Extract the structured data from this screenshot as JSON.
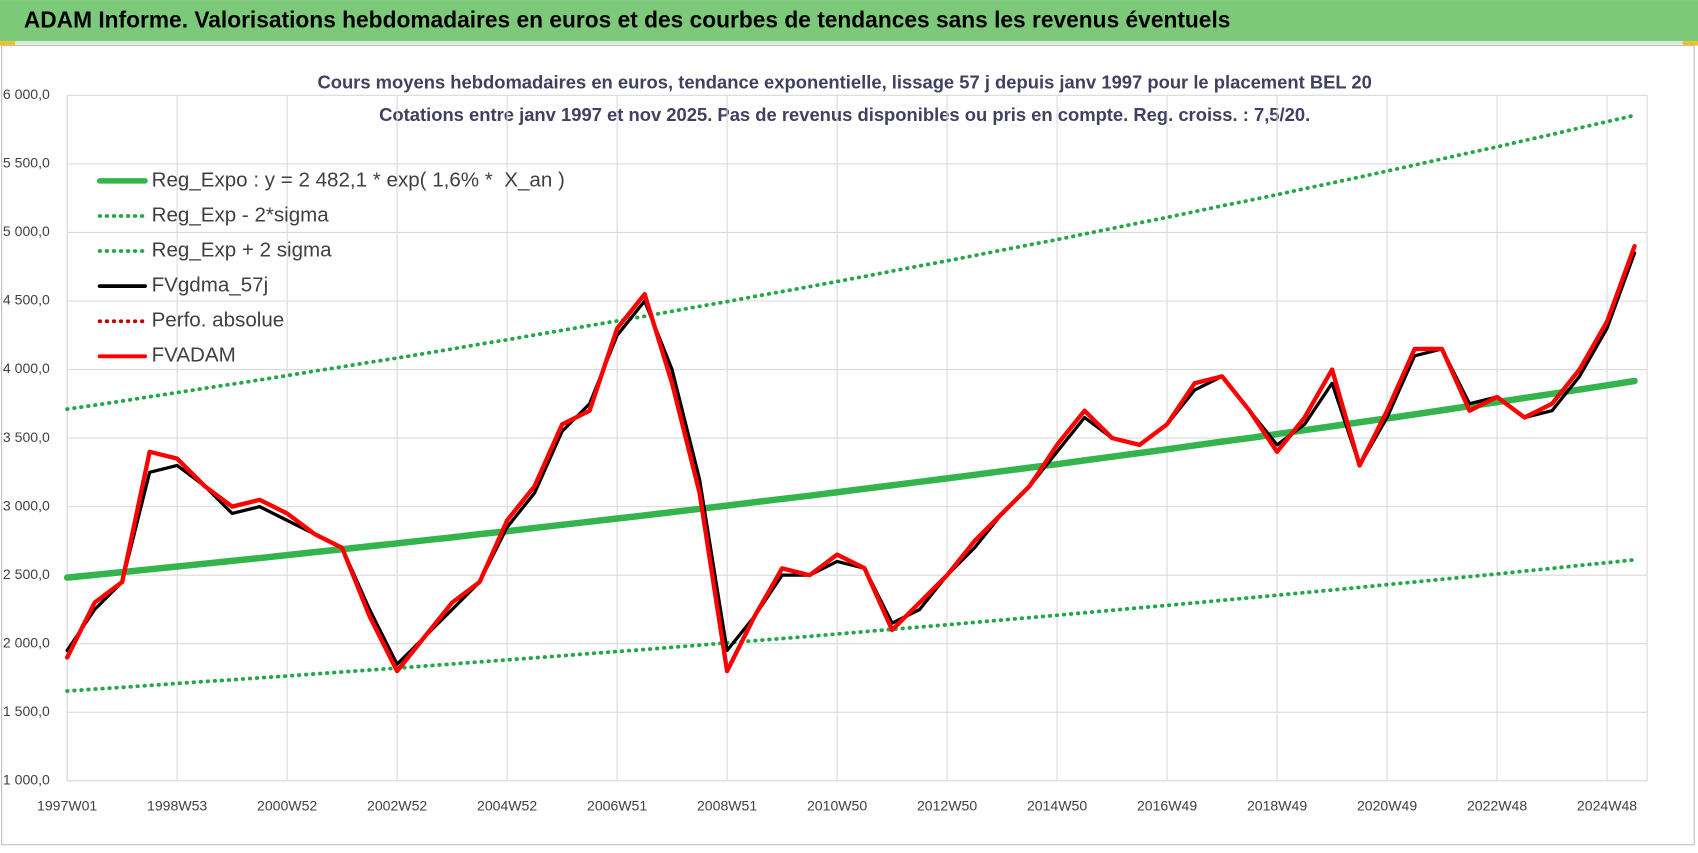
{
  "header": "ADAM Informe. Valorisations hebdomadaires en euros et des courbes de tendances sans les revenus éventuels",
  "chart_data": {
    "type": "line",
    "title": "Cours moyens hebdomadaires en euros, tendance exponentielle, lissage 57 j depuis janv 1997 pour le placement BEL 20",
    "subtitle": "Cotations entre janv 1997 et nov 2025. Pas de revenus disponibles ou pris en compte. Reg. croiss. : 7,5/20.",
    "categories": [
      "1997W01",
      null,
      null,
      null,
      "1998W53",
      null,
      null,
      null,
      "2000W52",
      null,
      null,
      null,
      "2002W52",
      null,
      null,
      null,
      "2004W52",
      null,
      null,
      null,
      "2006W51",
      null,
      null,
      null,
      "2008W51",
      null,
      null,
      null,
      "2010W50",
      null,
      null,
      null,
      "2012W50",
      null,
      null,
      null,
      "2014W50",
      null,
      null,
      null,
      "2016W49",
      null,
      null,
      null,
      "2018W49",
      null,
      null,
      null,
      "2020W49",
      null,
      null,
      null,
      "2022W48",
      null,
      null,
      null,
      "2024W48",
      null
    ],
    "ylim": [
      1000,
      6000
    ],
    "yticks": [
      {
        "value": 1000,
        "label": "1 000,0"
      },
      {
        "value": 1500,
        "label": "1 500,0"
      },
      {
        "value": 2000,
        "label": "2 000,0"
      },
      {
        "value": 2500,
        "label": "2 500,0"
      },
      {
        "value": 3000,
        "label": "3 000,0"
      },
      {
        "value": 3500,
        "label": "3 500,0"
      },
      {
        "value": 4000,
        "label": "4 000,0"
      },
      {
        "value": 4500,
        "label": "4 500,0"
      },
      {
        "value": 5000,
        "label": "5 000,0"
      },
      {
        "value": 5500,
        "label": "5 500,0"
      },
      {
        "value": 6000,
        "label": "6 000,0"
      }
    ],
    "grid": true,
    "legend": "upper left",
    "series": [
      {
        "name": "Reg_Expo : y = 2 482,1 * exp( 1,6% *  X_an )",
        "color": "#34b44c",
        "style": "solid",
        "values": [
          2482,
          2502,
          2522,
          2543,
          2563,
          2584,
          2604,
          2625,
          2646,
          2668,
          2689,
          2711,
          2732,
          2754,
          2776,
          2799,
          2821,
          2844,
          2867,
          2890,
          2913,
          2936,
          2960,
          2984,
          3007,
          3032,
          3056,
          3080,
          3105,
          3130,
          3156,
          3181,
          3206,
          3232,
          3258,
          3284,
          3310,
          3337,
          3364,
          3391,
          3418,
          3446,
          3474,
          3501,
          3529,
          3558,
          3586,
          3615,
          3644,
          3673,
          3703,
          3733,
          3762,
          3793,
          3823,
          3854,
          3885,
          3916
        ]
      },
      {
        "name": "Reg_Exp - 2*sigma",
        "color": "#22a84a",
        "style": "dotted",
        "values": [
          1655,
          1669,
          1682,
          1696,
          1710,
          1724,
          1737,
          1751,
          1765,
          1780,
          1794,
          1808,
          1822,
          1837,
          1852,
          1867,
          1882,
          1897,
          1912,
          1928,
          1943,
          1958,
          1974,
          1990,
          2006,
          2022,
          2038,
          2054,
          2071,
          2088,
          2105,
          2122,
          2138,
          2156,
          2173,
          2190,
          2208,
          2226,
          2244,
          2262,
          2280,
          2298,
          2317,
          2335,
          2354,
          2373,
          2392,
          2411,
          2431,
          2450,
          2470,
          2490,
          2509,
          2530,
          2550,
          2571,
          2591,
          2612
        ]
      },
      {
        "name": "Reg_Exp + 2 sigma",
        "color": "#22a84a",
        "style": "dotted",
        "values": [
          3711,
          3740,
          3770,
          3802,
          3832,
          3863,
          3893,
          3924,
          3956,
          3989,
          4020,
          4053,
          4084,
          4117,
          4150,
          4185,
          4217,
          4252,
          4286,
          4321,
          4355,
          4389,
          4425,
          4461,
          4495,
          4533,
          4569,
          4605,
          4642,
          4679,
          4718,
          4756,
          4793,
          4832,
          4871,
          4910,
          4948,
          4989,
          5029,
          5070,
          5110,
          5152,
          5194,
          5234,
          5276,
          5319,
          5361,
          5404,
          5448,
          5491,
          5536,
          5581,
          5624,
          5671,
          5715,
          5762,
          5808,
          5854
        ]
      },
      {
        "name": "FVgdma_57j",
        "color": "#000000",
        "style": "solid",
        "values": [
          1950,
          2250,
          2450,
          3250,
          3300,
          3150,
          2950,
          3000,
          2900,
          2800,
          2700,
          2250,
          1850,
          2050,
          2250,
          2450,
          2850,
          3100,
          3550,
          3750,
          4250,
          4500,
          4000,
          3200,
          1950,
          2200,
          2500,
          2500,
          2600,
          2550,
          2150,
          2250,
          2500,
          2700,
          2950,
          3150,
          3400,
          3650,
          3500,
          3450,
          3600,
          3850,
          3950,
          3700,
          3450,
          3600,
          3900,
          3300,
          3650,
          4100,
          4150,
          3750,
          3800,
          3650,
          3700,
          3950,
          4300,
          4850
        ]
      },
      {
        "name": "Perfo. absolue",
        "color": "#c00000",
        "style": "dotted",
        "values": [
          1900,
          2300,
          2450,
          3400,
          3350,
          3150,
          3000,
          3050,
          2950,
          2800,
          2700,
          2200,
          1800,
          2050,
          2300,
          2450,
          2900,
          3150,
          3600,
          3700,
          4300,
          4550,
          3900,
          3100,
          1800,
          2200,
          2550,
          2500,
          2650,
          2550,
          2100,
          2300,
          2500,
          2750,
          2950,
          3150,
          3450,
          3700,
          3500,
          3450,
          3600,
          3900,
          3950,
          3700,
          3400,
          3650,
          4000,
          3300,
          3700,
          4150,
          4150,
          3700,
          3800,
          3650,
          3750,
          4000,
          4350,
          4900
        ]
      },
      {
        "name": "FVADAM",
        "color": "#ff0000",
        "style": "solid",
        "values": [
          1900,
          2300,
          2450,
          3400,
          3350,
          3150,
          3000,
          3050,
          2950,
          2800,
          2700,
          2200,
          1800,
          2050,
          2300,
          2450,
          2900,
          3150,
          3600,
          3700,
          4300,
          4550,
          3900,
          3100,
          1800,
          2200,
          2550,
          2500,
          2650,
          2550,
          2100,
          2300,
          2500,
          2750,
          2950,
          3150,
          3450,
          3700,
          3500,
          3450,
          3600,
          3900,
          3950,
          3700,
          3400,
          3650,
          4000,
          3300,
          3700,
          4150,
          4150,
          3700,
          3800,
          3650,
          3750,
          4000,
          4350,
          4900
        ]
      }
    ]
  }
}
